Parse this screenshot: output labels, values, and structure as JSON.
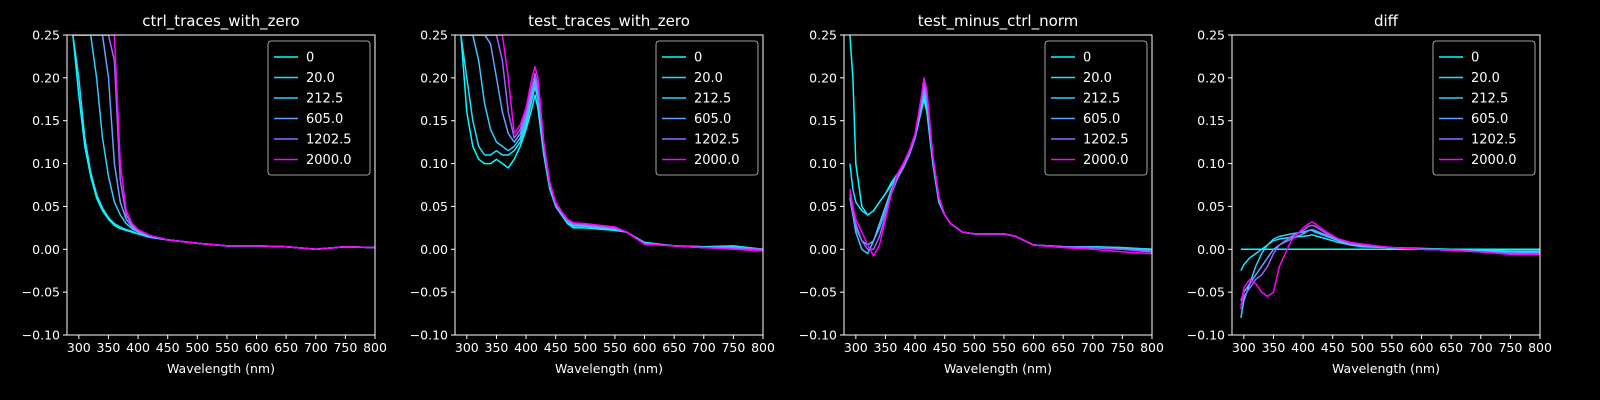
{
  "figure": {
    "background": "#000000",
    "foreground": "#ffffff"
  },
  "legend": {
    "labels": [
      "0",
      "20.0",
      "212.5",
      "605.0",
      "1202.5",
      "2000.0"
    ],
    "colors": [
      "#00ffff",
      "#1ee1ff",
      "#34cbff",
      "#63a1ff",
      "#9a65ff",
      "#ff00ff"
    ]
  },
  "chart_data": [
    {
      "type": "line",
      "title": "ctrl_traces_with_zero",
      "xlabel": "Wavelength (nm)",
      "ylabel": "",
      "xlim": [
        280,
        800
      ],
      "ylim": [
        -0.1,
        0.25
      ],
      "xticks": [
        "300",
        "350",
        "400",
        "450",
        "500",
        "550",
        "600",
        "650",
        "700",
        "750",
        "800"
      ],
      "yticks": [
        "−0.10",
        "−0.05",
        "0.00",
        "0.05",
        "0.10",
        "0.15",
        "0.20",
        "0.25"
      ],
      "legend_position": "top-right",
      "x": [
        290,
        300,
        310,
        320,
        330,
        340,
        350,
        360,
        370,
        380,
        390,
        400,
        420,
        450,
        500,
        550,
        600,
        650,
        700,
        750,
        800
      ],
      "series": [
        {
          "name": "0",
          "values": [
            0.25,
            0.18,
            0.12,
            0.085,
            0.06,
            0.045,
            0.035,
            0.028,
            0.024,
            0.022,
            0.02,
            0.018,
            0.014,
            0.011,
            0.007,
            0.004,
            0.004,
            0.003,
            0.0,
            0.003,
            0.002
          ]
        },
        {
          "name": "20.0",
          "values": [
            0.25,
            0.2,
            0.13,
            0.09,
            0.064,
            0.048,
            0.037,
            0.03,
            0.026,
            0.023,
            0.021,
            0.018,
            0.014,
            0.011,
            0.007,
            0.004,
            0.004,
            0.003,
            0.0,
            0.003,
            0.002
          ]
        },
        {
          "name": "212.5",
          "values": [
            0.25,
            0.25,
            0.25,
            0.25,
            0.2,
            0.13,
            0.085,
            0.055,
            0.04,
            0.03,
            0.024,
            0.02,
            0.015,
            0.011,
            0.007,
            0.004,
            0.004,
            0.003,
            0.0,
            0.003,
            0.002
          ]
        },
        {
          "name": "605.0",
          "values": [
            0.25,
            0.25,
            0.25,
            0.25,
            0.25,
            0.25,
            0.2,
            0.1,
            0.055,
            0.035,
            0.026,
            0.021,
            0.015,
            0.011,
            0.007,
            0.004,
            0.004,
            0.003,
            0.0,
            0.003,
            0.002
          ]
        },
        {
          "name": "1202.5",
          "values": [
            0.25,
            0.25,
            0.25,
            0.25,
            0.25,
            0.25,
            0.25,
            0.22,
            0.08,
            0.04,
            0.028,
            0.022,
            0.016,
            0.011,
            0.007,
            0.004,
            0.004,
            0.003,
            0.0,
            0.003,
            0.002
          ]
        },
        {
          "name": "2000.0",
          "values": [
            0.25,
            0.25,
            0.25,
            0.25,
            0.25,
            0.25,
            0.25,
            0.25,
            0.1,
            0.045,
            0.03,
            0.023,
            0.016,
            0.011,
            0.007,
            0.004,
            0.004,
            0.003,
            0.0,
            0.003,
            0.002
          ]
        }
      ]
    },
    {
      "type": "line",
      "title": "test_traces_with_zero",
      "xlabel": "Wavelength (nm)",
      "ylabel": "",
      "xlim": [
        280,
        800
      ],
      "ylim": [
        -0.1,
        0.25
      ],
      "xticks": [
        "300",
        "350",
        "400",
        "450",
        "500",
        "550",
        "600",
        "650",
        "700",
        "750",
        "800"
      ],
      "yticks": [
        "−0.10",
        "−0.05",
        "0.00",
        "0.05",
        "0.10",
        "0.15",
        "0.20",
        "0.25"
      ],
      "legend_position": "top-right",
      "x": [
        290,
        300,
        310,
        320,
        330,
        340,
        350,
        360,
        370,
        380,
        390,
        400,
        410,
        415,
        420,
        430,
        440,
        450,
        460,
        470,
        480,
        500,
        550,
        570,
        600,
        650,
        700,
        750,
        800
      ],
      "series": [
        {
          "name": "0",
          "values": [
            0.25,
            0.16,
            0.12,
            0.105,
            0.1,
            0.1,
            0.105,
            0.1,
            0.095,
            0.105,
            0.12,
            0.14,
            0.165,
            0.18,
            0.165,
            0.11,
            0.07,
            0.05,
            0.04,
            0.03,
            0.025,
            0.025,
            0.022,
            0.02,
            0.008,
            0.004,
            0.003,
            0.004,
            0.0
          ]
        },
        {
          "name": "20.0",
          "values": [
            0.25,
            0.2,
            0.15,
            0.12,
            0.11,
            0.11,
            0.115,
            0.11,
            0.11,
            0.115,
            0.125,
            0.145,
            0.175,
            0.19,
            0.175,
            0.115,
            0.072,
            0.05,
            0.04,
            0.03,
            0.027,
            0.027,
            0.023,
            0.02,
            0.007,
            0.004,
            0.003,
            0.003,
            0.0
          ]
        },
        {
          "name": "212.5",
          "values": [
            0.25,
            0.25,
            0.25,
            0.22,
            0.17,
            0.14,
            0.125,
            0.12,
            0.115,
            0.12,
            0.13,
            0.15,
            0.18,
            0.195,
            0.18,
            0.118,
            0.073,
            0.05,
            0.04,
            0.032,
            0.028,
            0.027,
            0.024,
            0.02,
            0.007,
            0.004,
            0.002,
            0.003,
            0.0
          ]
        },
        {
          "name": "605.0",
          "values": [
            0.25,
            0.25,
            0.25,
            0.25,
            0.25,
            0.24,
            0.2,
            0.16,
            0.135,
            0.125,
            0.135,
            0.155,
            0.185,
            0.2,
            0.185,
            0.12,
            0.075,
            0.052,
            0.042,
            0.033,
            0.029,
            0.028,
            0.024,
            0.02,
            0.007,
            0.004,
            0.002,
            0.002,
            0.0
          ]
        },
        {
          "name": "1202.5",
          "values": [
            0.25,
            0.25,
            0.25,
            0.25,
            0.25,
            0.25,
            0.25,
            0.22,
            0.16,
            0.13,
            0.14,
            0.16,
            0.19,
            0.205,
            0.19,
            0.12,
            0.076,
            0.053,
            0.043,
            0.034,
            0.03,
            0.029,
            0.025,
            0.02,
            0.006,
            0.004,
            0.002,
            0.001,
            0.0
          ]
        },
        {
          "name": "2000.0",
          "values": [
            0.25,
            0.25,
            0.25,
            0.25,
            0.25,
            0.25,
            0.25,
            0.25,
            0.2,
            0.135,
            0.145,
            0.165,
            0.2,
            0.213,
            0.2,
            0.125,
            0.078,
            0.055,
            0.044,
            0.035,
            0.031,
            0.03,
            0.026,
            0.02,
            0.006,
            0.004,
            0.002,
            0.0,
            -0.002
          ]
        }
      ]
    },
    {
      "type": "line",
      "title": "test_minus_ctrl_norm",
      "xlabel": "Wavelength (nm)",
      "ylabel": "",
      "xlim": [
        280,
        800
      ],
      "ylim": [
        -0.1,
        0.25
      ],
      "xticks": [
        "300",
        "350",
        "400",
        "450",
        "500",
        "550",
        "600",
        "650",
        "700",
        "750",
        "800"
      ],
      "yticks": [
        "−0.10",
        "−0.05",
        "0.00",
        "0.05",
        "0.10",
        "0.15",
        "0.20",
        "0.25"
      ],
      "legend_position": "top-right",
      "x": [
        290,
        295,
        300,
        310,
        320,
        330,
        340,
        350,
        360,
        370,
        380,
        390,
        400,
        410,
        415,
        420,
        430,
        440,
        450,
        460,
        470,
        480,
        500,
        550,
        570,
        600,
        650,
        700,
        750,
        800
      ],
      "series": [
        {
          "name": "0",
          "values": [
            0.25,
            0.2,
            0.1,
            0.05,
            0.04,
            0.045,
            0.055,
            0.065,
            0.075,
            0.085,
            0.095,
            0.11,
            0.13,
            0.16,
            0.175,
            0.16,
            0.1,
            0.055,
            0.04,
            0.03,
            0.025,
            0.02,
            0.018,
            0.018,
            0.015,
            0.005,
            0.003,
            0.003,
            0.002,
            0.0
          ]
        },
        {
          "name": "20.0",
          "values": [
            0.1,
            0.07,
            0.055,
            0.045,
            0.04,
            0.045,
            0.055,
            0.065,
            0.078,
            0.088,
            0.097,
            0.112,
            0.132,
            0.165,
            0.18,
            0.165,
            0.102,
            0.056,
            0.04,
            0.03,
            0.025,
            0.02,
            0.018,
            0.018,
            0.015,
            0.005,
            0.003,
            0.003,
            0.002,
            0.0
          ]
        },
        {
          "name": "212.5",
          "values": [
            0.06,
            0.04,
            0.02,
            0.0,
            -0.005,
            0.01,
            0.03,
            0.05,
            0.07,
            0.085,
            0.095,
            0.11,
            0.13,
            0.165,
            0.185,
            0.17,
            0.104,
            0.058,
            0.04,
            0.03,
            0.025,
            0.02,
            0.018,
            0.018,
            0.015,
            0.005,
            0.003,
            0.002,
            0.001,
            0.0
          ]
        },
        {
          "name": "605.0",
          "values": [
            0.06,
            0.04,
            0.025,
            0.01,
            0.005,
            0.01,
            0.025,
            0.045,
            0.065,
            0.082,
            0.095,
            0.11,
            0.13,
            0.17,
            0.19,
            0.175,
            0.106,
            0.06,
            0.04,
            0.03,
            0.025,
            0.02,
            0.018,
            0.018,
            0.015,
            0.005,
            0.003,
            0.002,
            0.0,
            -0.002
          ]
        },
        {
          "name": "1202.5",
          "values": [
            0.065,
            0.045,
            0.03,
            0.01,
            0.0,
            0.0,
            0.015,
            0.04,
            0.065,
            0.085,
            0.097,
            0.112,
            0.132,
            0.173,
            0.195,
            0.18,
            0.108,
            0.06,
            0.04,
            0.03,
            0.025,
            0.02,
            0.018,
            0.018,
            0.015,
            0.005,
            0.003,
            0.002,
            0.0,
            -0.003
          ]
        },
        {
          "name": "2000.0",
          "values": [
            0.07,
            0.05,
            0.035,
            0.02,
            0.005,
            -0.008,
            0.005,
            0.035,
            0.065,
            0.088,
            0.1,
            0.115,
            0.135,
            0.175,
            0.2,
            0.185,
            0.11,
            0.062,
            0.04,
            0.03,
            0.025,
            0.02,
            0.018,
            0.018,
            0.015,
            0.005,
            0.002,
            0.0,
            -0.003,
            -0.005
          ]
        }
      ]
    },
    {
      "type": "line",
      "title": "diff",
      "xlabel": "Wavelength (nm)",
      "ylabel": "",
      "xlim": [
        280,
        800
      ],
      "ylim": [
        -0.1,
        0.25
      ],
      "xticks": [
        "300",
        "350",
        "400",
        "450",
        "500",
        "550",
        "600",
        "650",
        "700",
        "750",
        "800"
      ],
      "yticks": [
        "−0.10",
        "−0.05",
        "0.00",
        "0.05",
        "0.10",
        "0.15",
        "0.20",
        "0.25"
      ],
      "legend_position": "top-right",
      "x": [
        295,
        300,
        310,
        320,
        330,
        340,
        350,
        360,
        380,
        400,
        410,
        415,
        420,
        440,
        460,
        480,
        500,
        550,
        600,
        650,
        700,
        750,
        800
      ],
      "series": [
        {
          "name": "0",
          "values": [
            0.0,
            0.0,
            0.0,
            0.0,
            0.0,
            0.0,
            0.0,
            0.0,
            0.0,
            0.0,
            0.0,
            0.0,
            0.0,
            0.0,
            0.0,
            0.0,
            0.0,
            0.0,
            0.0,
            0.0,
            0.0,
            0.0,
            0.0
          ]
        },
        {
          "name": "20.0",
          "values": [
            -0.025,
            -0.018,
            -0.01,
            -0.005,
            0.0,
            0.005,
            0.01,
            0.012,
            0.014,
            0.015,
            0.016,
            0.017,
            0.016,
            0.012,
            0.008,
            0.005,
            0.003,
            0.002,
            0.001,
            0.0,
            -0.001,
            -0.002,
            -0.002
          ]
        },
        {
          "name": "212.5",
          "values": [
            -0.08,
            -0.06,
            -0.04,
            -0.02,
            -0.005,
            0.005,
            0.012,
            0.015,
            0.018,
            0.02,
            0.022,
            0.022,
            0.02,
            0.015,
            0.01,
            0.005,
            0.004,
            0.002,
            0.0,
            -0.001,
            -0.002,
            -0.003,
            -0.003
          ]
        },
        {
          "name": "605.0",
          "values": [
            -0.06,
            -0.05,
            -0.04,
            -0.03,
            -0.02,
            -0.01,
            0.0,
            0.005,
            0.012,
            0.018,
            0.022,
            0.023,
            0.022,
            0.016,
            0.011,
            0.006,
            0.004,
            0.002,
            0.0,
            -0.001,
            -0.003,
            -0.005,
            -0.004
          ]
        },
        {
          "name": "1202.5",
          "values": [
            -0.065,
            -0.055,
            -0.045,
            -0.035,
            -0.03,
            -0.02,
            -0.005,
            0.005,
            0.015,
            0.022,
            0.027,
            0.028,
            0.027,
            0.018,
            0.012,
            0.007,
            0.005,
            0.002,
            0.0,
            -0.001,
            -0.003,
            -0.005,
            -0.005
          ]
        },
        {
          "name": "2000.0",
          "values": [
            -0.07,
            -0.045,
            -0.035,
            -0.04,
            -0.05,
            -0.055,
            -0.05,
            -0.02,
            0.01,
            0.025,
            0.03,
            0.032,
            0.03,
            0.02,
            0.012,
            0.008,
            0.006,
            0.002,
            0.0,
            -0.001,
            -0.003,
            -0.006,
            -0.006
          ]
        }
      ]
    }
  ]
}
